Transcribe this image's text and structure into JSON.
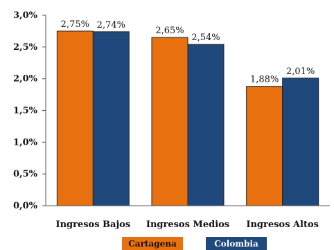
{
  "chart_data": {
    "type": "bar",
    "categories": [
      "Ingresos Bajos",
      "Ingresos Medios",
      "Ingresos Altos"
    ],
    "series": [
      {
        "name": "Cartagena",
        "values": [
          2.75,
          2.65,
          1.88
        ],
        "labels": [
          "2,75%",
          "2,65%",
          "1,88%"
        ],
        "color": "#e8700e"
      },
      {
        "name": "Colombia",
        "values": [
          2.74,
          2.54,
          2.01
        ],
        "labels": [
          "2,74%",
          "2,54%",
          "2,01%"
        ],
        "color": "#1f497d"
      }
    ],
    "ylim": [
      0,
      3.0
    ],
    "yticks": [
      0,
      0.5,
      1.0,
      1.5,
      2.0,
      2.5,
      3.0
    ],
    "ytick_labels": [
      "0,0%",
      "0,5%",
      "1,0%",
      "1,5%",
      "2,0%",
      "2,5%",
      "3,0%"
    ],
    "grid": false,
    "legend_position": "bottom",
    "legend_text_colors": {
      "Cartagena": "#111111",
      "Colombia": "#ffffff"
    }
  }
}
